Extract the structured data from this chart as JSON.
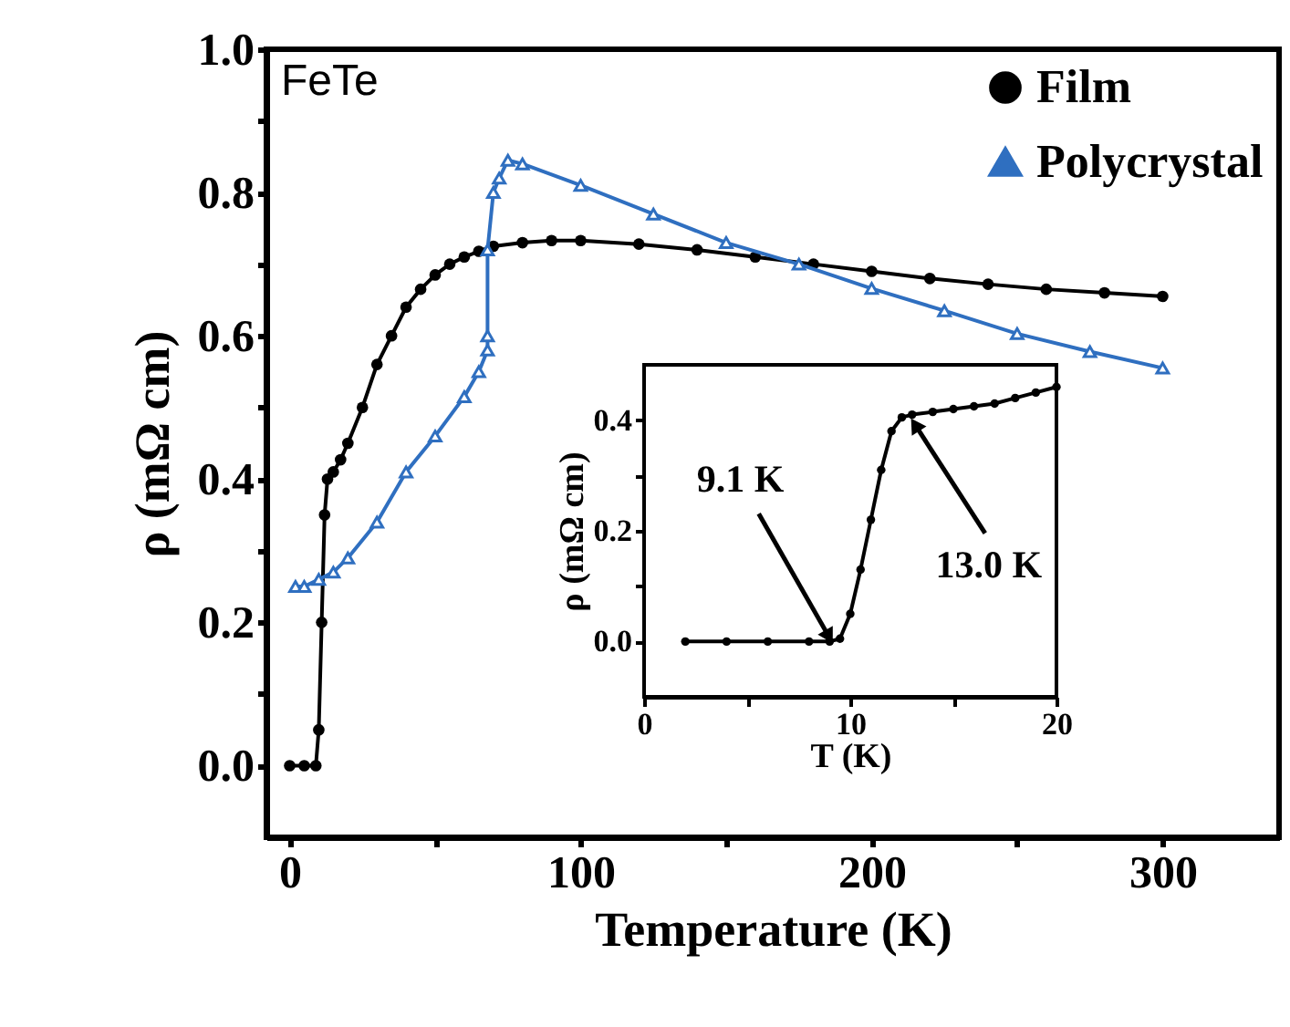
{
  "chart_data": [
    {
      "type": "line",
      "xlabel": "Temperature (K)",
      "ylabel": "ρ (mΩ cm)",
      "xlim": [
        -8,
        340
      ],
      "ylim": [
        -0.1,
        1.0
      ],
      "xticks": [
        0,
        {
          "value": 50,
          "label": null
        },
        100,
        {
          "value": 150,
          "label": null
        },
        200,
        {
          "value": 250,
          "label": null
        },
        300
      ],
      "yticks": [
        {
          "value": 0,
          "label": "0.0"
        },
        {
          "value": 0.1,
          "label": null
        },
        {
          "value": 0.2,
          "label": "0.2"
        },
        {
          "value": 0.3,
          "label": null
        },
        {
          "value": 0.4,
          "label": "0.4"
        },
        {
          "value": 0.5,
          "label": null
        },
        {
          "value": 0.6,
          "label": "0.6"
        },
        {
          "value": 0.7,
          "label": null
        },
        {
          "value": 0.8,
          "label": "0.8"
        },
        {
          "value": 0.9,
          "label": null
        },
        {
          "value": 1.0,
          "label": "1.0"
        }
      ],
      "legend": "top right",
      "grid": false,
      "line_style": "solid",
      "annotations": [
        "FeTe"
      ],
      "series": [
        {
          "name": "Film",
          "color": "#000000",
          "marker": "circle",
          "x": [
            0,
            5,
            9,
            10,
            11,
            12,
            13,
            15,
            17.5,
            20,
            25,
            30,
            35,
            40,
            45,
            50,
            55,
            60,
            65,
            70,
            80,
            90,
            100,
            120,
            140,
            160,
            180,
            200,
            220,
            240,
            260,
            280,
            300
          ],
          "values": [
            0,
            0,
            0,
            0.05,
            0.2,
            0.35,
            0.4,
            0.41,
            0.427,
            0.45,
            0.5,
            0.56,
            0.6,
            0.64,
            0.665,
            0.685,
            0.7,
            0.71,
            0.718,
            0.725,
            0.73,
            0.733,
            0.733,
            0.728,
            0.72,
            0.71,
            0.7,
            0.69,
            0.68,
            0.672,
            0.665,
            0.66,
            0.655
          ]
        },
        {
          "name": "Polycrystal",
          "color": "#2f6fc0",
          "marker": "triangle",
          "x": [
            2,
            5,
            10,
            15,
            20,
            30,
            40,
            50,
            60,
            65,
            68,
            68,
            68,
            70,
            72,
            75,
            80,
            100,
            125,
            150,
            175,
            200,
            225,
            250,
            275,
            300
          ],
          "values": [
            0.25,
            0.25,
            0.26,
            0.27,
            0.29,
            0.34,
            0.41,
            0.46,
            0.515,
            0.55,
            0.58,
            0.6,
            0.72,
            0.8,
            0.82,
            0.845,
            0.84,
            0.81,
            0.77,
            0.73,
            0.7,
            0.666,
            0.635,
            0.603,
            0.578,
            0.555
          ]
        }
      ]
    },
    {
      "type": "line",
      "xlabel": "T (K)",
      "ylabel": "ρ (mΩ cm)",
      "xlim": [
        0,
        20
      ],
      "ylim": [
        -0.1,
        0.5
      ],
      "xticks": [
        0,
        {
          "value": 5,
          "label": null
        },
        10,
        {
          "value": 15,
          "label": null
        },
        20
      ],
      "yticks": [
        {
          "value": 0,
          "label": "0.0"
        },
        {
          "value": 0.1,
          "label": null
        },
        {
          "value": 0.2,
          "label": "0.2"
        },
        {
          "value": 0.3,
          "label": null
        },
        {
          "value": 0.4,
          "label": "0.4"
        }
      ],
      "grid": false,
      "line_style": "solid",
      "annotations": [
        {
          "text": "9.1 K",
          "x": 9.1,
          "y": 0
        },
        {
          "text": "13.0 K",
          "x": 13.0,
          "y": 0.4
        }
      ],
      "series": [
        {
          "color": "#000000",
          "marker": "circle",
          "x": [
            2,
            4,
            6,
            8,
            9,
            9.5,
            10,
            10.5,
            11,
            11.5,
            12,
            12.5,
            13,
            14,
            15,
            16,
            17,
            18,
            19,
            20
          ],
          "values": [
            0,
            0,
            0,
            0,
            0,
            0.005,
            0.05,
            0.13,
            0.22,
            0.31,
            0.38,
            0.405,
            0.41,
            0.415,
            0.42,
            0.425,
            0.43,
            0.44,
            0.45,
            0.46
          ]
        }
      ]
    }
  ]
}
